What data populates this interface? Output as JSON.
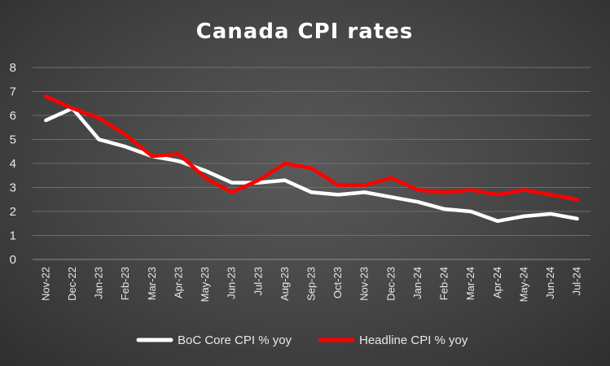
{
  "chart_data": {
    "type": "line",
    "title": "Canada CPI rates",
    "xlabel": "",
    "ylabel": "",
    "categories": [
      "Nov-22",
      "Dec-22",
      "Jan-23",
      "Feb-23",
      "Mar-23",
      "Apr-23",
      "May-23",
      "Jun-23",
      "Jul-23",
      "Aug-23",
      "Sep-23",
      "Oct-23",
      "Nov-23",
      "Dec-23",
      "Jan-24",
      "Feb-24",
      "Mar-24",
      "Apr-24",
      "May-24",
      "Jun-24",
      "Jul-24"
    ],
    "ylim": [
      0,
      8
    ],
    "yticks": [
      "0",
      "1",
      "2",
      "3",
      "4",
      "5",
      "6",
      "7",
      "8"
    ],
    "grid": true,
    "legend_position": "bottom",
    "series": [
      {
        "name": "BoC Core CPI % yoy",
        "color": "#ffffff",
        "values": [
          5.8,
          6.3,
          5.0,
          4.7,
          4.3,
          4.1,
          3.7,
          3.2,
          3.2,
          3.3,
          2.8,
          2.7,
          2.8,
          2.6,
          2.4,
          2.1,
          2.0,
          1.6,
          1.8,
          1.9,
          1.7
        ]
      },
      {
        "name": "Headline CPI % yoy",
        "color": "#ff0000",
        "values": [
          6.8,
          6.3,
          5.9,
          5.2,
          4.3,
          4.4,
          3.4,
          2.8,
          3.3,
          4.0,
          3.8,
          3.1,
          3.1,
          3.4,
          2.9,
          2.8,
          2.9,
          2.7,
          2.9,
          2.7,
          2.5
        ]
      }
    ]
  },
  "colors": {
    "background": "#444444",
    "grid": "#6e6e6e",
    "text": "#e8e8e8"
  }
}
